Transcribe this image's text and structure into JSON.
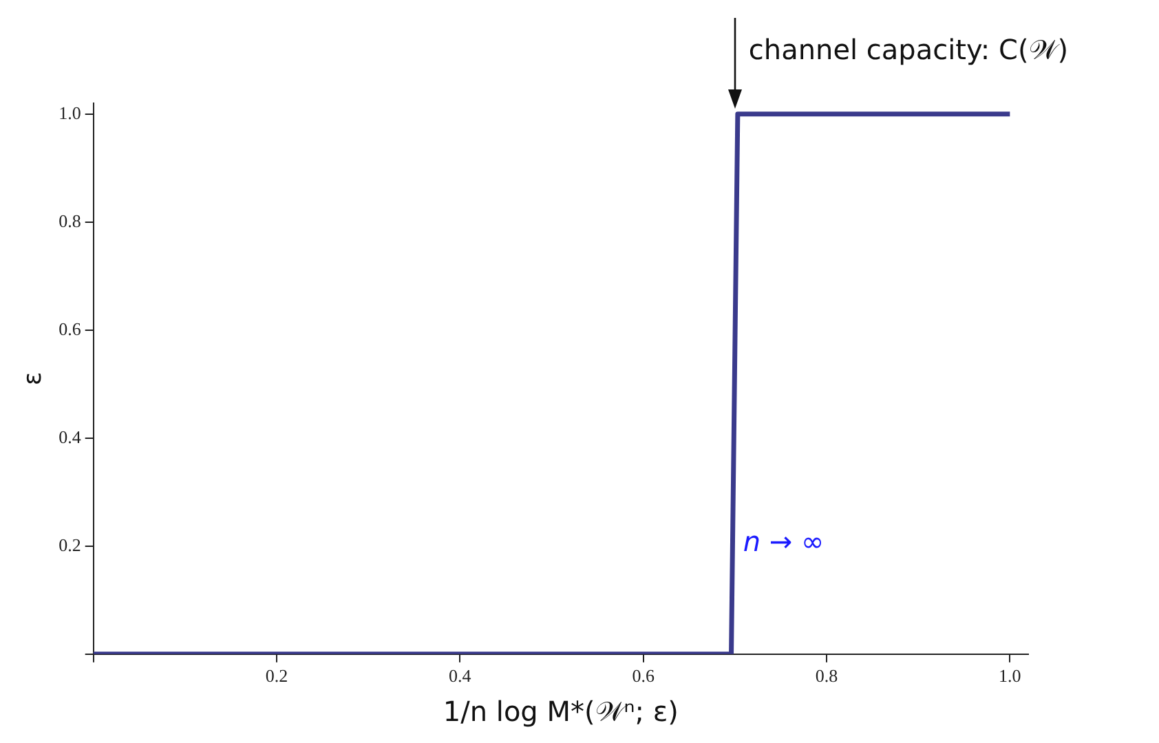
{
  "chart_data": {
    "type": "line",
    "xlabel": "1/n log M*(𝒲ⁿ; ε)",
    "ylabel": "ε",
    "x": [
      0,
      0.696,
      0.703,
      1.0
    ],
    "series": [
      {
        "color": "#3a3a8c",
        "values": [
          0,
          0,
          1,
          1
        ]
      }
    ],
    "xlim": [
      0,
      1.02
    ],
    "ylim": [
      0,
      1.02
    ],
    "xticks": [
      {
        "value": 0,
        "label": null
      },
      0.2,
      0.4,
      0.6,
      0.8,
      {
        "value": 1,
        "label": "1.0"
      }
    ],
    "yticks": [
      {
        "value": 0,
        "label": null
      },
      0.2,
      0.4,
      0.6,
      0.8,
      {
        "value": 1,
        "label": "1.0"
      }
    ],
    "grid": false,
    "legend": false,
    "marker": "none",
    "line_style": "solid",
    "annotations": [
      {
        "text": "channel capacity: C(𝒲)",
        "x": 0.7,
        "y": 1.0
      },
      "n → ∞"
    ]
  }
}
